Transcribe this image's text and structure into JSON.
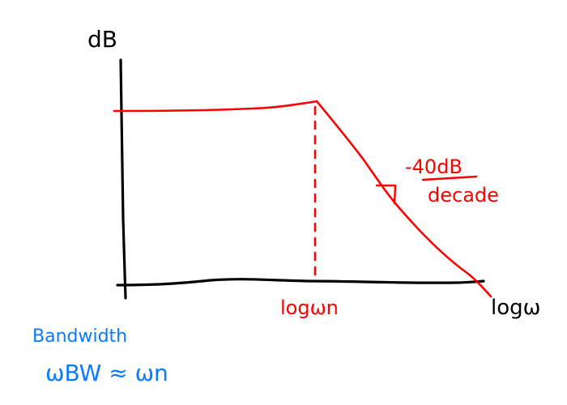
{
  "diagram": {
    "y_axis_label": "dB",
    "x_axis_label": "logω",
    "corner_label": "logωn",
    "slope_label_value": "-40dB",
    "slope_label_unit": "decade",
    "note_title": "Bandwidth",
    "note_formula": "ωBW ≈ ωn"
  },
  "colors": {
    "axes": "#000000",
    "curve": "#ff0000",
    "note": "#0a7aff"
  }
}
